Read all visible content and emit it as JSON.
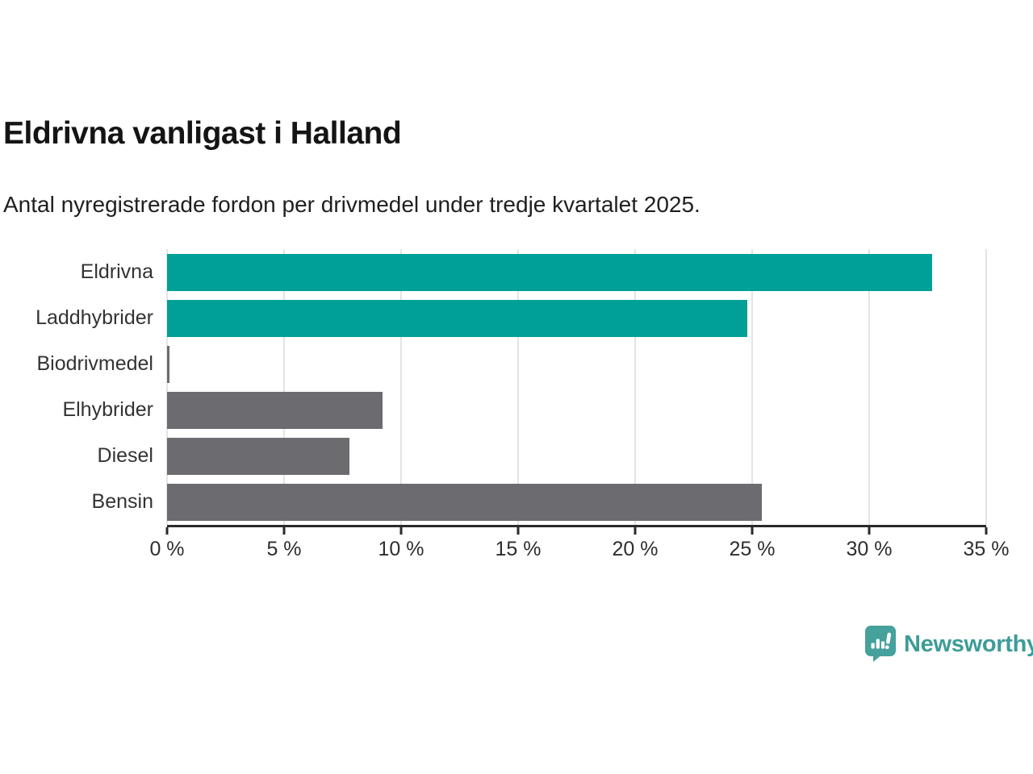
{
  "header": {
    "title": "Eldrivna vanligast i Halland",
    "subtitle": "Antal nyregistrerade fordon per drivmedel under tredje kvartalet 2025."
  },
  "chart_data": {
    "type": "bar",
    "orientation": "horizontal",
    "title": "Eldrivna vanligast i Halland",
    "subtitle": "Antal nyregistrerade fordon per drivmedel under tredje kvartalet 2025.",
    "categories": [
      "Eldrivna",
      "Laddhybrider",
      "Biodrivmedel",
      "Elhybrider",
      "Diesel",
      "Bensin"
    ],
    "values": [
      32.7,
      24.8,
      0.1,
      9.2,
      7.8,
      25.4
    ],
    "unit": "%",
    "bar_colors": [
      "#00a099",
      "#00a099",
      "#6c6c70",
      "#6c6c70",
      "#6c6c70",
      "#6c6c70"
    ],
    "xlim": [
      0,
      35
    ],
    "x_ticks": [
      {
        "value": 0,
        "label": "0 %"
      },
      {
        "value": 5,
        "label": "5 %"
      },
      {
        "value": 10,
        "label": "10 %"
      },
      {
        "value": 15,
        "label": "15 %"
      },
      {
        "value": 20,
        "label": "20 %"
      },
      {
        "value": 25,
        "label": "25 %"
      },
      {
        "value": 30,
        "label": "30 %"
      },
      {
        "value": 35,
        "label": "35 %"
      }
    ],
    "grid": "vertical",
    "legend": "none",
    "colors": {
      "highlight": "#00a099",
      "default": "#6c6c70",
      "gridline": "#e4e4e4",
      "axis": "#2a2a2a",
      "label_text": "#333333"
    }
  },
  "footer": {
    "brand": "Newsworthy",
    "brand_color": "#3d9c98"
  }
}
